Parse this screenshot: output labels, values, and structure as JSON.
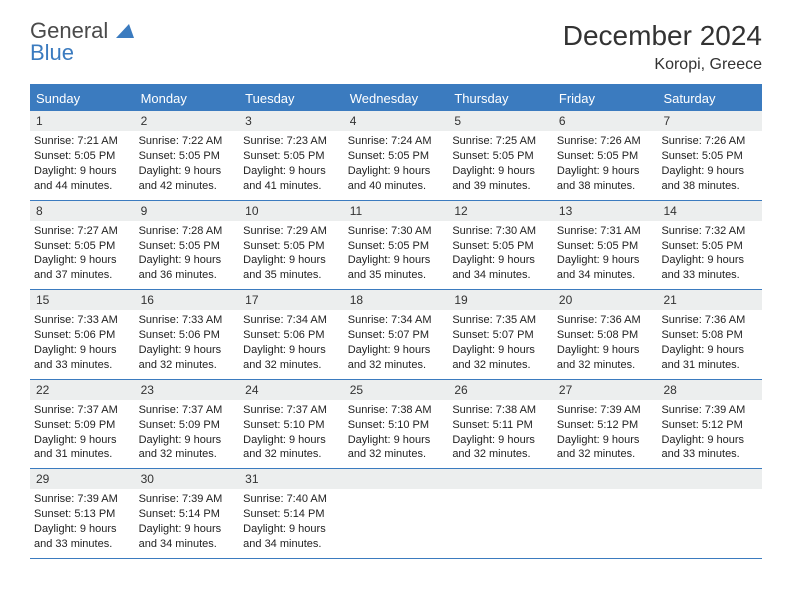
{
  "brand": {
    "line1": "General",
    "line2": "Blue"
  },
  "title": "December 2024",
  "location": "Koropi, Greece",
  "dow": [
    "Sunday",
    "Monday",
    "Tuesday",
    "Wednesday",
    "Thursday",
    "Friday",
    "Saturday"
  ],
  "colors": {
    "accent": "#3b7bbf",
    "bar": "#eceeee",
    "text": "#222222",
    "bg": "#ffffff"
  },
  "weeks": [
    [
      {
        "n": "1",
        "sr": "7:21 AM",
        "ss": "5:05 PM",
        "dl": "9 hours and 44 minutes."
      },
      {
        "n": "2",
        "sr": "7:22 AM",
        "ss": "5:05 PM",
        "dl": "9 hours and 42 minutes."
      },
      {
        "n": "3",
        "sr": "7:23 AM",
        "ss": "5:05 PM",
        "dl": "9 hours and 41 minutes."
      },
      {
        "n": "4",
        "sr": "7:24 AM",
        "ss": "5:05 PM",
        "dl": "9 hours and 40 minutes."
      },
      {
        "n": "5",
        "sr": "7:25 AM",
        "ss": "5:05 PM",
        "dl": "9 hours and 39 minutes."
      },
      {
        "n": "6",
        "sr": "7:26 AM",
        "ss": "5:05 PM",
        "dl": "9 hours and 38 minutes."
      },
      {
        "n": "7",
        "sr": "7:26 AM",
        "ss": "5:05 PM",
        "dl": "9 hours and 38 minutes."
      }
    ],
    [
      {
        "n": "8",
        "sr": "7:27 AM",
        "ss": "5:05 PM",
        "dl": "9 hours and 37 minutes."
      },
      {
        "n": "9",
        "sr": "7:28 AM",
        "ss": "5:05 PM",
        "dl": "9 hours and 36 minutes."
      },
      {
        "n": "10",
        "sr": "7:29 AM",
        "ss": "5:05 PM",
        "dl": "9 hours and 35 minutes."
      },
      {
        "n": "11",
        "sr": "7:30 AM",
        "ss": "5:05 PM",
        "dl": "9 hours and 35 minutes."
      },
      {
        "n": "12",
        "sr": "7:30 AM",
        "ss": "5:05 PM",
        "dl": "9 hours and 34 minutes."
      },
      {
        "n": "13",
        "sr": "7:31 AM",
        "ss": "5:05 PM",
        "dl": "9 hours and 34 minutes."
      },
      {
        "n": "14",
        "sr": "7:32 AM",
        "ss": "5:05 PM",
        "dl": "9 hours and 33 minutes."
      }
    ],
    [
      {
        "n": "15",
        "sr": "7:33 AM",
        "ss": "5:06 PM",
        "dl": "9 hours and 33 minutes."
      },
      {
        "n": "16",
        "sr": "7:33 AM",
        "ss": "5:06 PM",
        "dl": "9 hours and 32 minutes."
      },
      {
        "n": "17",
        "sr": "7:34 AM",
        "ss": "5:06 PM",
        "dl": "9 hours and 32 minutes."
      },
      {
        "n": "18",
        "sr": "7:34 AM",
        "ss": "5:07 PM",
        "dl": "9 hours and 32 minutes."
      },
      {
        "n": "19",
        "sr": "7:35 AM",
        "ss": "5:07 PM",
        "dl": "9 hours and 32 minutes."
      },
      {
        "n": "20",
        "sr": "7:36 AM",
        "ss": "5:08 PM",
        "dl": "9 hours and 32 minutes."
      },
      {
        "n": "21",
        "sr": "7:36 AM",
        "ss": "5:08 PM",
        "dl": "9 hours and 31 minutes."
      }
    ],
    [
      {
        "n": "22",
        "sr": "7:37 AM",
        "ss": "5:09 PM",
        "dl": "9 hours and 31 minutes."
      },
      {
        "n": "23",
        "sr": "7:37 AM",
        "ss": "5:09 PM",
        "dl": "9 hours and 32 minutes."
      },
      {
        "n": "24",
        "sr": "7:37 AM",
        "ss": "5:10 PM",
        "dl": "9 hours and 32 minutes."
      },
      {
        "n": "25",
        "sr": "7:38 AM",
        "ss": "5:10 PM",
        "dl": "9 hours and 32 minutes."
      },
      {
        "n": "26",
        "sr": "7:38 AM",
        "ss": "5:11 PM",
        "dl": "9 hours and 32 minutes."
      },
      {
        "n": "27",
        "sr": "7:39 AM",
        "ss": "5:12 PM",
        "dl": "9 hours and 32 minutes."
      },
      {
        "n": "28",
        "sr": "7:39 AM",
        "ss": "5:12 PM",
        "dl": "9 hours and 33 minutes."
      }
    ],
    [
      {
        "n": "29",
        "sr": "7:39 AM",
        "ss": "5:13 PM",
        "dl": "9 hours and 33 minutes."
      },
      {
        "n": "30",
        "sr": "7:39 AM",
        "ss": "5:14 PM",
        "dl": "9 hours and 34 minutes."
      },
      {
        "n": "31",
        "sr": "7:40 AM",
        "ss": "5:14 PM",
        "dl": "9 hours and 34 minutes."
      },
      {
        "empty": true
      },
      {
        "empty": true
      },
      {
        "empty": true
      },
      {
        "empty": true
      }
    ]
  ],
  "labels": {
    "sunrise": "Sunrise:",
    "sunset": "Sunset:",
    "daylight": "Daylight:"
  }
}
